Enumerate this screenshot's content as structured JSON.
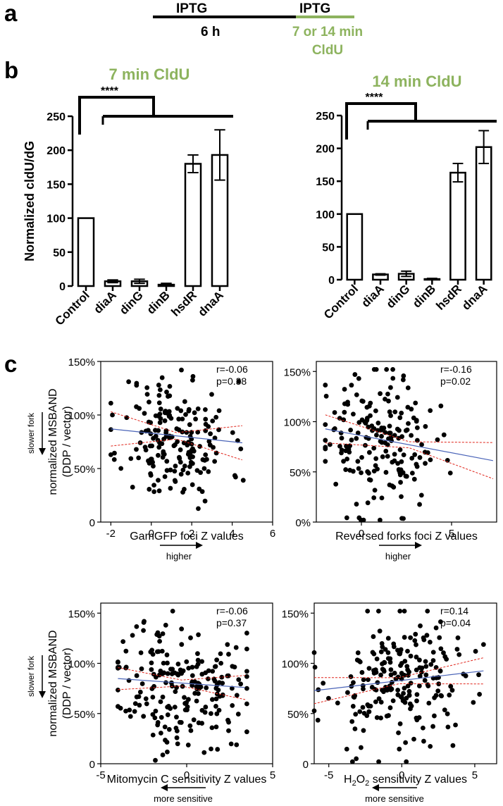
{
  "panels": {
    "a": "a",
    "b": "b",
    "c": "c"
  },
  "timeline": {
    "first_label": "IPTG",
    "first_duration": "6 h",
    "second_label": "IPTG",
    "second_duration_line1": "7 or 14 min",
    "second_duration_line2": "CldU",
    "colors": {
      "black": "#000000",
      "green": "#8db35e"
    }
  },
  "colors": {
    "green": "#8db35e",
    "trend": "#4a64b8",
    "ci": "#e0251b"
  },
  "side_labels": {
    "slower_fork": "slower fork",
    "higher": "higher",
    "more_sensitive": "more sensitive"
  },
  "chart_data": [
    {
      "id": "bar7",
      "type": "bar",
      "title": "7 min CldU",
      "ylabel": "Normalized cldU/dG",
      "xlabel": "",
      "ylim": [
        0,
        250
      ],
      "yticks": [
        0,
        50,
        100,
        150,
        200,
        250
      ],
      "categories": [
        "Control",
        "diaA",
        "dinG",
        "dinB",
        "hsdR",
        "dnaA"
      ],
      "values": [
        100,
        7,
        7,
        2,
        180,
        193
      ],
      "errors": [
        0,
        2,
        3,
        2,
        13,
        37
      ],
      "significance": "****",
      "bracket": "Control vs. all other strains"
    },
    {
      "id": "bar14",
      "type": "bar",
      "title": "14 min CldU",
      "ylabel": "",
      "xlabel": "",
      "ylim": [
        0,
        250
      ],
      "yticks": [
        0,
        50,
        100,
        150,
        200,
        250
      ],
      "categories": [
        "Control",
        "diaA",
        "dinG",
        "dinB",
        "hsdR",
        "dnaA"
      ],
      "values": [
        100,
        8,
        9,
        1,
        163,
        202
      ],
      "errors": [
        0,
        1,
        4,
        1,
        14,
        25
      ],
      "significance": "****",
      "bracket": "Control vs. all other strains"
    },
    {
      "id": "sc1",
      "type": "scatter",
      "xlabel": "GamGFP foci Z values",
      "ylabel_line1": "normalized MSBAND",
      "ylabel_line2": "(DDP / vector)",
      "xlim": [
        -2.5,
        6
      ],
      "ylim": [
        0,
        1.5
      ],
      "xticks": [
        -2,
        0,
        2,
        4,
        6
      ],
      "yticks": [
        0,
        0.5,
        1.0,
        1.5
      ],
      "ytick_labels": [
        "0",
        "50%",
        "100%",
        "150%"
      ],
      "r_label": "r=-0.06",
      "p_label": "p=0.38",
      "fit": {
        "slope": -0.02,
        "intercept": 0.83,
        "xrange": [
          -2,
          4.5
        ],
        "ci_spread": [
          0.16,
          0.03,
          0.16
        ]
      },
      "seed": 11,
      "cloud": {
        "x_mean": 1.2,
        "x_sd": 1.35,
        "y_mean": 0.78,
        "y_sd": 0.3,
        "n": 190,
        "x_min": -2,
        "x_max": 4.6
      }
    },
    {
      "id": "sc2",
      "type": "scatter",
      "xlabel": "Reversed forks foci Z values",
      "ylabel_line1": "",
      "ylabel_line2": "",
      "xlim": [
        -2.5,
        7.5
      ],
      "ylim": [
        0,
        1.6
      ],
      "xticks": [
        0,
        5
      ],
      "yticks": [
        0,
        0.5,
        1.0,
        1.5
      ],
      "ytick_labels": [
        "0%",
        "50%",
        "100%",
        "150%"
      ],
      "r_label": "r=-0.16",
      "p_label": "p=0.02",
      "fit": {
        "slope": -0.034,
        "intercept": 0.86,
        "xrange": [
          -2,
          7.3
        ],
        "ci_spread": [
          0.14,
          0.03,
          0.18
        ]
      },
      "seed": 23,
      "cloud": {
        "x_mean": 0.9,
        "x_sd": 1.6,
        "y_mean": 0.8,
        "y_sd": 0.32,
        "n": 190,
        "x_min": -2,
        "x_max": 7
      }
    },
    {
      "id": "sc3",
      "type": "scatter",
      "xlabel": "Mitomycin C sensitivity Z values",
      "ylabel_line1": "normalized MSBAND",
      "ylabel_line2": "(DDP / vector)",
      "xlim": [
        -5,
        5
      ],
      "ylim": [
        0,
        1.6
      ],
      "xticks": [
        -5,
        0,
        5
      ],
      "yticks": [
        0,
        0.5,
        1.0,
        1.5
      ],
      "ytick_labels": [
        "0",
        "50%",
        "100%",
        "150%"
      ],
      "r_label": "r=-0.06",
      "p_label": "p=0.37",
      "fit": {
        "slope": -0.012,
        "intercept": 0.8,
        "xrange": [
          -4,
          3.4
        ],
        "ci_spread": [
          0.11,
          0.03,
          0.12
        ]
      },
      "seed": 37,
      "cloud": {
        "x_mean": -0.4,
        "x_sd": 1.9,
        "y_mean": 0.78,
        "y_sd": 0.32,
        "n": 210,
        "x_min": -4,
        "x_max": 3.5
      }
    },
    {
      "id": "sc4",
      "type": "scatter",
      "xlabel": "H2O2 sensitivity Z values",
      "xlabel_parts": [
        "H",
        "2",
        "O",
        "2",
        " sensitivity Z values"
      ],
      "ylabel_line1": "",
      "ylabel_line2": "",
      "xlim": [
        -6,
        6.5
      ],
      "ylim": [
        0,
        1.6
      ],
      "xticks": [
        -5,
        0,
        5
      ],
      "yticks": [
        0,
        0.5,
        1.0,
        1.5
      ],
      "ytick_labels": [
        "0",
        "50%",
        "100%",
        "150%"
      ],
      "r_label": "r=0.14",
      "p_label": "p=0.04",
      "fit": {
        "slope": 0.017,
        "intercept": 0.83,
        "xrange": [
          -6,
          5.6
        ],
        "ci_spread": [
          0.13,
          0.03,
          0.13
        ]
      },
      "seed": 53,
      "cloud": {
        "x_mean": 0.0,
        "x_sd": 2.6,
        "y_mean": 0.8,
        "y_sd": 0.33,
        "n": 220,
        "x_min": -6,
        "x_max": 5.6
      }
    }
  ]
}
